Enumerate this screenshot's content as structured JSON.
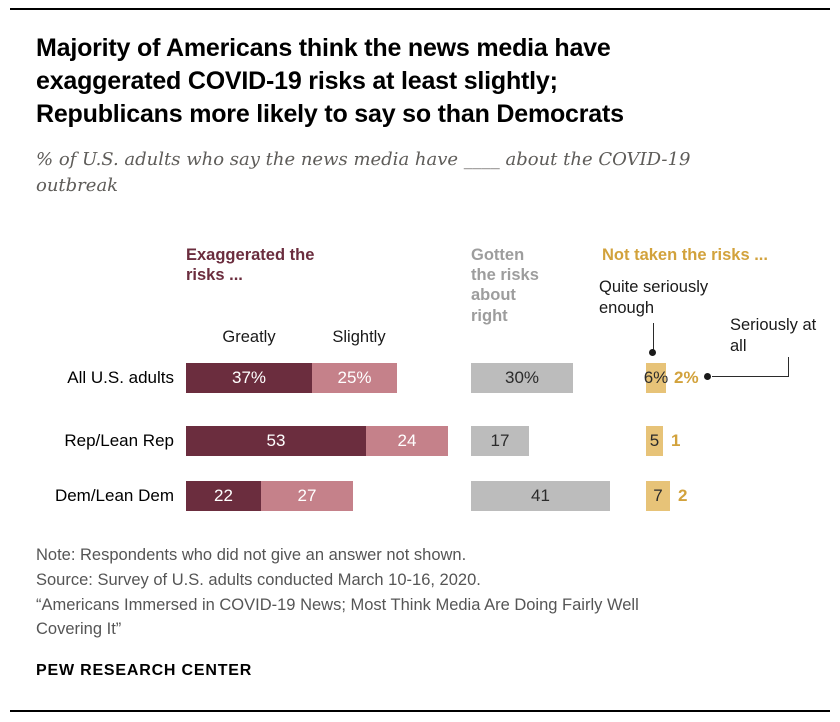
{
  "header": {
    "title": "Majority of Americans think the news media have exaggerated COVID-19 risks at least slightly; Republicans more likely to say so than Democrats",
    "subtitle": "% of U.S. adults who say the news media have ____ about the COVID-19 outbreak"
  },
  "chart": {
    "group_headers": {
      "exaggerated": "Exaggerated the risks ...",
      "about_right": "Gotten the risks about right",
      "not_taken": "Not taken the risks ..."
    },
    "sub_headers": {
      "greatly": "Greatly",
      "slightly": "Slightly",
      "quite_seriously": "Quite seriously enough",
      "seriously_at_all": "Seriously at all"
    },
    "rows": [
      {
        "label": "All U.S. adults",
        "cells": [
          "37%",
          "25%",
          "30%",
          "6%",
          "2%"
        ]
      },
      {
        "label": "Rep/Lean Rep",
        "cells": [
          "53",
          "24",
          "17",
          "5",
          "1"
        ]
      },
      {
        "label": "Dem/Lean Dem",
        "cells": [
          "22",
          "27",
          "41",
          "7",
          "2"
        ]
      }
    ]
  },
  "chart_data": {
    "type": "bar",
    "orientation": "horizontal",
    "title": "Majority of Americans think the news media have exaggerated COVID-19 risks at least slightly; Republicans more likely to say so than Democrats",
    "subtitle": "% of U.S. adults who say the news media have ____ about the COVID-19 outbreak",
    "categories": [
      "All U.S. adults",
      "Rep/Lean Rep",
      "Dem/Lean Dem"
    ],
    "series": [
      {
        "name": "Exaggerated the risks greatly",
        "values": [
          37,
          53,
          22
        ],
        "color": "#6b2d3e"
      },
      {
        "name": "Exaggerated the risks slightly",
        "values": [
          25,
          24,
          27
        ],
        "color": "#c5818a"
      },
      {
        "name": "Gotten the risks about right",
        "values": [
          30,
          17,
          41
        ],
        "color": "#bcbcbc"
      },
      {
        "name": "Not taken the risks quite seriously enough",
        "values": [
          6,
          5,
          7
        ],
        "color": "#e7c378"
      },
      {
        "name": "Not taken the risks seriously at all",
        "values": [
          2,
          1,
          2
        ],
        "color": "#d2a23c"
      }
    ],
    "unit": "%",
    "xlim": [
      0,
      60
    ],
    "grid": false,
    "legend_position": "column-headers-above-bars"
  },
  "footer": {
    "note": "Note: Respondents who did not give an answer not shown.",
    "source": "Source: Survey of U.S. adults conducted March 10-16, 2020.",
    "report_title": "“Americans Immersed in COVID-19 News; Most Think Media Are Doing Fairly Well Covering It”",
    "brand": "PEW RESEARCH CENTER"
  },
  "colors": {
    "maroon": "#6b2d3e",
    "rose": "#c5818a",
    "gray_bar": "#bcbcbc",
    "gray_header": "#9d9d9d",
    "gold_bar": "#e7c378",
    "gold_text": "#d2a23c"
  }
}
